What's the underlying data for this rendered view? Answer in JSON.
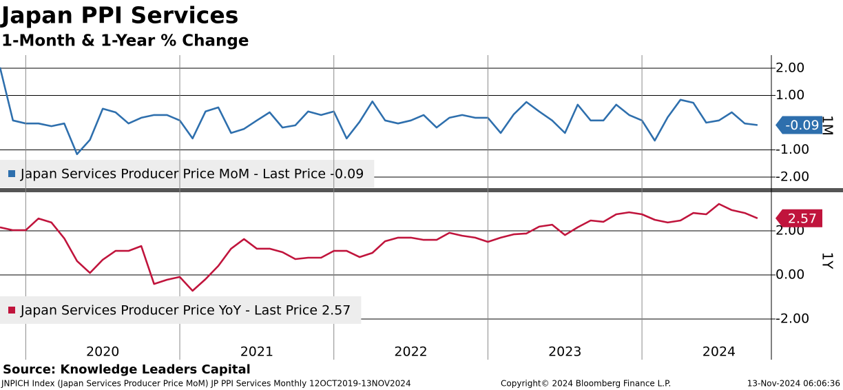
{
  "title": "Japan PPI Services",
  "subtitle": "1-Month & 1-Year % Change",
  "source": "Source: Knowledge Leaders Capital",
  "footer": {
    "left": "JNPICH Index (Japan Services Producer Price MoM) JP PPI Services  Monthly 12OCT2019-13NOV2024",
    "center": "Copyright© 2024 Bloomberg Finance L.P.",
    "right": "13-Nov-2024 06:06:36"
  },
  "chart_data": [
    {
      "type": "line",
      "axis_label": "1M",
      "x": [
        2019.833,
        2019.917,
        2020.0,
        2020.083,
        2020.167,
        2020.25,
        2020.333,
        2020.417,
        2020.5,
        2020.583,
        2020.667,
        2020.75,
        2020.833,
        2020.917,
        2021.0,
        2021.083,
        2021.167,
        2021.25,
        2021.333,
        2021.417,
        2021.5,
        2021.583,
        2021.667,
        2021.75,
        2021.833,
        2021.917,
        2022.0,
        2022.083,
        2022.167,
        2022.25,
        2022.333,
        2022.417,
        2022.5,
        2022.583,
        2022.667,
        2022.75,
        2022.833,
        2022.917,
        2023.0,
        2023.083,
        2023.167,
        2023.25,
        2023.333,
        2023.417,
        2023.5,
        2023.583,
        2023.667,
        2023.75,
        2023.833,
        2023.917,
        2024.0,
        2024.083,
        2024.167,
        2024.25,
        2024.333,
        2024.417,
        2024.5,
        2024.583,
        2024.667,
        2024.75
      ],
      "xlim": [
        2019.833,
        2024.84
      ],
      "ylim": [
        -2.38,
        2.48
      ],
      "yticks": [
        {
          "value": 2,
          "label": "2.00"
        },
        {
          "value": 1,
          "label": "1.00"
        },
        {
          "value": -1,
          "label": "-1.00"
        },
        {
          "value": -2,
          "label": "-2.00"
        }
      ],
      "series": [
        {
          "name": "Japan Services Producer Price MoM - Last Price -0.09",
          "color": "#2e6fad",
          "values": [
            2.03,
            0.08,
            -0.03,
            -0.03,
            -0.13,
            -0.03,
            -1.16,
            -0.63,
            0.51,
            0.38,
            -0.03,
            0.18,
            0.28,
            0.28,
            0.08,
            -0.58,
            0.41,
            0.56,
            -0.38,
            -0.23,
            0.08,
            0.38,
            -0.18,
            -0.1,
            0.41,
            0.28,
            0.41,
            -0.58,
            0.03,
            0.78,
            0.08,
            -0.03,
            0.08,
            0.28,
            -0.18,
            0.18,
            0.28,
            0.18,
            0.18,
            -0.38,
            0.3,
            0.76,
            0.41,
            0.08,
            -0.38,
            0.66,
            0.08,
            0.08,
            0.66,
            0.28,
            0.08,
            -0.66,
            0.2,
            0.84,
            0.73,
            0,
            0.08,
            0.38,
            -0.03,
            -0.09
          ]
        }
      ]
    },
    {
      "type": "line",
      "axis_label": "1Y",
      "x": [
        2019.833,
        2019.917,
        2020.0,
        2020.083,
        2020.167,
        2020.25,
        2020.333,
        2020.417,
        2020.5,
        2020.583,
        2020.667,
        2020.75,
        2020.833,
        2020.917,
        2021.0,
        2021.083,
        2021.167,
        2021.25,
        2021.333,
        2021.417,
        2021.5,
        2021.583,
        2021.667,
        2021.75,
        2021.833,
        2021.917,
        2022.0,
        2022.083,
        2022.167,
        2022.25,
        2022.333,
        2022.417,
        2022.5,
        2022.583,
        2022.667,
        2022.75,
        2022.833,
        2022.917,
        2023.0,
        2023.083,
        2023.167,
        2023.25,
        2023.333,
        2023.417,
        2023.5,
        2023.583,
        2023.667,
        2023.75,
        2023.833,
        2023.917,
        2024.0,
        2024.083,
        2024.167,
        2024.25,
        2024.333,
        2024.417,
        2024.5,
        2024.583,
        2024.667,
        2024.75
      ],
      "xlim": [
        2019.833,
        2024.84
      ],
      "xticks": [
        2020,
        2021,
        2022,
        2023,
        2024
      ],
      "ylim": [
        -2.22,
        3.72
      ],
      "yticks": [
        {
          "value": 2,
          "label": "2.00"
        },
        {
          "value": 0,
          "label": "0.00"
        },
        {
          "value": -2,
          "label": "-2.00"
        }
      ],
      "series": [
        {
          "name": "Japan Services Producer Price YoY - Last Price 2.57",
          "color": "#c0143c",
          "values": [
            2.16,
            2.03,
            2.03,
            2.56,
            2.38,
            1.66,
            0.63,
            0.09,
            0.69,
            1.09,
            1.09,
            1.31,
            -0.41,
            -0.22,
            -0.09,
            -0.72,
            -0.19,
            0.41,
            1.19,
            1.63,
            1.19,
            1.19,
            1.03,
            0.72,
            0.78,
            0.78,
            1.09,
            1.09,
            0.81,
            1.0,
            1.53,
            1.69,
            1.69,
            1.59,
            1.59,
            1.91,
            1.78,
            1.69,
            1.5,
            1.69,
            1.84,
            1.88,
            2.19,
            2.28,
            1.81,
            2.16,
            2.47,
            2.41,
            2.75,
            2.84,
            2.75,
            2.5,
            2.38,
            2.47,
            2.81,
            2.75,
            3.22,
            2.94,
            2.81,
            2.57
          ]
        }
      ]
    }
  ]
}
